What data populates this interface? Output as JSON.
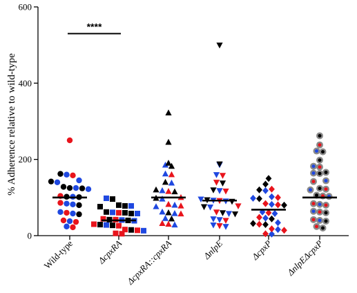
{
  "chart_data": {
    "type": "scatter",
    "ylabel": "% Adherence relative to wild-type",
    "ylim": [
      0,
      600
    ],
    "yticks": [
      0,
      200,
      400,
      600
    ],
    "grid": false,
    "legend": "none",
    "colors": {
      "black": "#000000",
      "red": "#e8141c",
      "blue": "#1f48e0",
      "grey": "#8a8a8a"
    },
    "significance": {
      "label": "****",
      "from_category": 0,
      "to_category": 1,
      "y": 530
    },
    "categories": [
      {
        "label": "Wild-type",
        "label_italic": false,
        "marker": "circle",
        "median": 100,
        "points": [
          {
            "y": 250,
            "c": "red"
          },
          {
            "y": 162,
            "c": "black"
          },
          {
            "y": 160,
            "c": "blue"
          },
          {
            "y": 158,
            "c": "red"
          },
          {
            "y": 145,
            "c": "blue"
          },
          {
            "y": 142,
            "c": "black"
          },
          {
            "y": 140,
            "c": "blue"
          },
          {
            "y": 128,
            "c": "black"
          },
          {
            "y": 125,
            "c": "black"
          },
          {
            "y": 125,
            "c": "blue"
          },
          {
            "y": 124,
            "c": "black"
          },
          {
            "y": 122,
            "c": "blue"
          },
          {
            "y": 104,
            "c": "red"
          },
          {
            "y": 102,
            "c": "black"
          },
          {
            "y": 102,
            "c": "blue"
          },
          {
            "y": 101,
            "c": "black"
          },
          {
            "y": 86,
            "c": "red"
          },
          {
            "y": 84,
            "c": "blue"
          },
          {
            "y": 82,
            "c": "blue"
          },
          {
            "y": 80,
            "c": "black"
          },
          {
            "y": 62,
            "c": "blue"
          },
          {
            "y": 60,
            "c": "red"
          },
          {
            "y": 58,
            "c": "blue"
          },
          {
            "y": 56,
            "c": "black"
          },
          {
            "y": 40,
            "c": "red"
          },
          {
            "y": 38,
            "c": "blue"
          },
          {
            "y": 36,
            "c": "red"
          },
          {
            "y": 24,
            "c": "blue"
          },
          {
            "y": 22,
            "c": "red"
          }
        ]
      },
      {
        "label": "ΔcpxRA",
        "label_italic": true,
        "marker": "square",
        "median": 40,
        "points": [
          {
            "y": 98,
            "c": "blue"
          },
          {
            "y": 96,
            "c": "black"
          },
          {
            "y": 80,
            "c": "black"
          },
          {
            "y": 78,
            "c": "black"
          },
          {
            "y": 78,
            "c": "blue"
          },
          {
            "y": 76,
            "c": "black"
          },
          {
            "y": 62,
            "c": "black"
          },
          {
            "y": 61,
            "c": "blue"
          },
          {
            "y": 60,
            "c": "red"
          },
          {
            "y": 60,
            "c": "black"
          },
          {
            "y": 58,
            "c": "black"
          },
          {
            "y": 58,
            "c": "blue"
          },
          {
            "y": 44,
            "c": "red"
          },
          {
            "y": 42,
            "c": "black"
          },
          {
            "y": 42,
            "c": "red"
          },
          {
            "y": 41,
            "c": "blue"
          },
          {
            "y": 40,
            "c": "black"
          },
          {
            "y": 39,
            "c": "blue"
          },
          {
            "y": 30,
            "c": "red"
          },
          {
            "y": 29,
            "c": "black"
          },
          {
            "y": 28,
            "c": "blue"
          },
          {
            "y": 27,
            "c": "black"
          },
          {
            "y": 26,
            "c": "red"
          },
          {
            "y": 16,
            "c": "red"
          },
          {
            "y": 15,
            "c": "black"
          },
          {
            "y": 14,
            "c": "red"
          },
          {
            "y": 13,
            "c": "blue"
          },
          {
            "y": 6,
            "c": "red"
          },
          {
            "y": 5,
            "c": "red"
          }
        ]
      },
      {
        "label": "ΔcpxRA::cpxRA",
        "label_italic": true,
        "marker": "triangle-up",
        "median": 100,
        "points": [
          {
            "y": 322,
            "c": "black"
          },
          {
            "y": 245,
            "c": "black"
          },
          {
            "y": 190,
            "c": "black"
          },
          {
            "y": 185,
            "c": "blue"
          },
          {
            "y": 182,
            "c": "black"
          },
          {
            "y": 162,
            "c": "blue"
          },
          {
            "y": 160,
            "c": "red"
          },
          {
            "y": 140,
            "c": "black"
          },
          {
            "y": 138,
            "c": "blue"
          },
          {
            "y": 120,
            "c": "black"
          },
          {
            "y": 118,
            "c": "blue"
          },
          {
            "y": 116,
            "c": "red"
          },
          {
            "y": 115,
            "c": "black"
          },
          {
            "y": 100,
            "c": "red"
          },
          {
            "y": 98,
            "c": "black"
          },
          {
            "y": 96,
            "c": "blue"
          },
          {
            "y": 82,
            "c": "red"
          },
          {
            "y": 80,
            "c": "blue"
          },
          {
            "y": 78,
            "c": "red"
          },
          {
            "y": 76,
            "c": "blue"
          },
          {
            "y": 62,
            "c": "blue"
          },
          {
            "y": 60,
            "c": "black"
          },
          {
            "y": 58,
            "c": "blue"
          },
          {
            "y": 57,
            "c": "red"
          },
          {
            "y": 45,
            "c": "blue"
          },
          {
            "y": 44,
            "c": "black"
          },
          {
            "y": 32,
            "c": "red"
          },
          {
            "y": 30,
            "c": "red"
          },
          {
            "y": 28,
            "c": "blue"
          }
        ]
      },
      {
        "label": "ΔnlpE",
        "label_italic": true,
        "marker": "triangle-down",
        "median": 92,
        "points": [
          {
            "y": 500,
            "c": "black"
          },
          {
            "y": 188,
            "c": "black"
          },
          {
            "y": 186,
            "c": "blue"
          },
          {
            "y": 160,
            "c": "blue"
          },
          {
            "y": 158,
            "c": "red"
          },
          {
            "y": 140,
            "c": "red"
          },
          {
            "y": 138,
            "c": "black"
          },
          {
            "y": 120,
            "c": "black"
          },
          {
            "y": 118,
            "c": "blue"
          },
          {
            "y": 117,
            "c": "red"
          },
          {
            "y": 96,
            "c": "blue"
          },
          {
            "y": 94,
            "c": "black"
          },
          {
            "y": 93,
            "c": "blue"
          },
          {
            "y": 92,
            "c": "red"
          },
          {
            "y": 91,
            "c": "blue"
          },
          {
            "y": 90,
            "c": "black"
          },
          {
            "y": 78,
            "c": "red"
          },
          {
            "y": 76,
            "c": "black"
          },
          {
            "y": 75,
            "c": "blue"
          },
          {
            "y": 62,
            "c": "red"
          },
          {
            "y": 60,
            "c": "black"
          },
          {
            "y": 58,
            "c": "blue"
          },
          {
            "y": 57,
            "c": "black"
          },
          {
            "y": 44,
            "c": "blue"
          },
          {
            "y": 42,
            "c": "blue"
          },
          {
            "y": 40,
            "c": "red"
          },
          {
            "y": 28,
            "c": "blue"
          },
          {
            "y": 26,
            "c": "red"
          },
          {
            "y": 24,
            "c": "blue"
          }
        ]
      },
      {
        "label": "ΔcpxP",
        "label_italic": true,
        "marker": "diamond",
        "median": 68,
        "points": [
          {
            "y": 150,
            "c": "black"
          },
          {
            "y": 135,
            "c": "black"
          },
          {
            "y": 122,
            "c": "red"
          },
          {
            "y": 120,
            "c": "black"
          },
          {
            "y": 118,
            "c": "blue"
          },
          {
            "y": 102,
            "c": "blue"
          },
          {
            "y": 100,
            "c": "red"
          },
          {
            "y": 98,
            "c": "blue"
          },
          {
            "y": 97,
            "c": "black"
          },
          {
            "y": 84,
            "c": "red"
          },
          {
            "y": 82,
            "c": "blue"
          },
          {
            "y": 81,
            "c": "red"
          },
          {
            "y": 80,
            "c": "black"
          },
          {
            "y": 62,
            "c": "blue"
          },
          {
            "y": 60,
            "c": "red"
          },
          {
            "y": 58,
            "c": "blue"
          },
          {
            "y": 48,
            "c": "red"
          },
          {
            "y": 46,
            "c": "blue"
          },
          {
            "y": 44,
            "c": "black"
          },
          {
            "y": 34,
            "c": "blue"
          },
          {
            "y": 32,
            "c": "black"
          },
          {
            "y": 30,
            "c": "red"
          },
          {
            "y": 29,
            "c": "black"
          },
          {
            "y": 18,
            "c": "red"
          },
          {
            "y": 16,
            "c": "blue"
          },
          {
            "y": 14,
            "c": "red"
          },
          {
            "y": 5,
            "c": "red"
          },
          {
            "y": 4,
            "c": "blue"
          }
        ]
      },
      {
        "label": "ΔnlpEΔcpxP",
        "label_italic": true,
        "marker": "ringed-circle",
        "median": 100,
        "points": [
          {
            "y": 262,
            "c": "black"
          },
          {
            "y": 238,
            "c": "red"
          },
          {
            "y": 222,
            "c": "blue"
          },
          {
            "y": 220,
            "c": "black"
          },
          {
            "y": 198,
            "c": "black"
          },
          {
            "y": 182,
            "c": "blue"
          },
          {
            "y": 180,
            "c": "red"
          },
          {
            "y": 166,
            "c": "black"
          },
          {
            "y": 164,
            "c": "blue"
          },
          {
            "y": 163,
            "c": "black"
          },
          {
            "y": 144,
            "c": "blue"
          },
          {
            "y": 142,
            "c": "red"
          },
          {
            "y": 124,
            "c": "black"
          },
          {
            "y": 122,
            "c": "red"
          },
          {
            "y": 120,
            "c": "blue"
          },
          {
            "y": 106,
            "c": "black"
          },
          {
            "y": 104,
            "c": "red"
          },
          {
            "y": 103,
            "c": "blue"
          },
          {
            "y": 84,
            "c": "red"
          },
          {
            "y": 82,
            "c": "blue"
          },
          {
            "y": 80,
            "c": "red"
          },
          {
            "y": 64,
            "c": "blue"
          },
          {
            "y": 62,
            "c": "red"
          },
          {
            "y": 60,
            "c": "black"
          },
          {
            "y": 42,
            "c": "red"
          },
          {
            "y": 40,
            "c": "blue"
          },
          {
            "y": 38,
            "c": "black"
          },
          {
            "y": 24,
            "c": "red"
          },
          {
            "y": 20,
            "c": "black"
          }
        ]
      }
    ]
  }
}
